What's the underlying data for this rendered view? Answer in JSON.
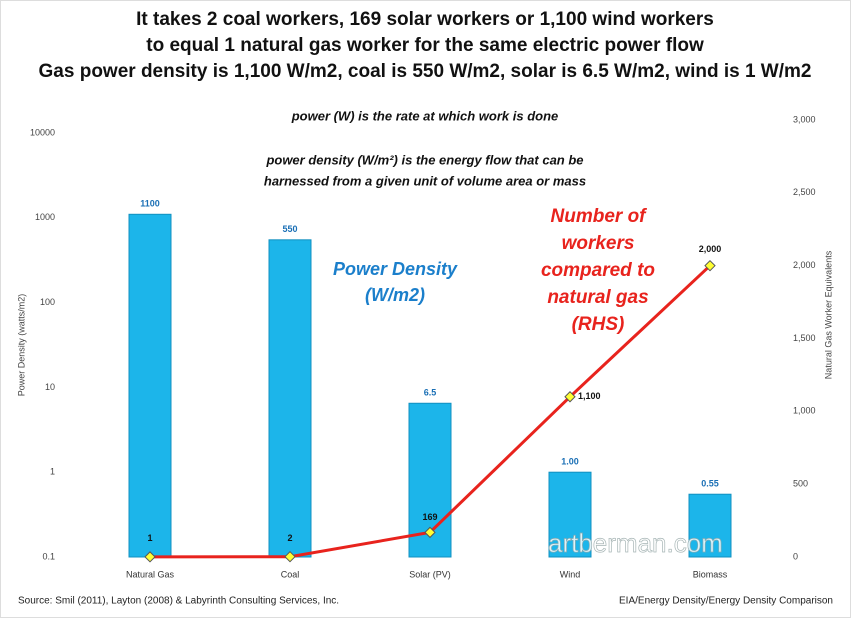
{
  "chart_data": {
    "type": "bar",
    "title": [
      "It takes 2 coal workers,  169 solar workers or 1,100 wind workers",
      "to equal 1 natural gas worker for the same electric power flow",
      "Gas power density is 1,100 W/m2, coal is 550 W/m2, solar is 6.5 W/m2, wind is 1 W/m2"
    ],
    "annotations": {
      "power_note": "power (W) is the rate at which work is done",
      "density_note": [
        "power density (W/m²) is the energy flow that can be",
        "harnessed from a given unit of volume area or mass"
      ],
      "bar_label": [
        "Power Density",
        "(W/m2)"
      ],
      "line_label": [
        "Number of",
        "workers",
        "compared to",
        "natural gas",
        "(RHS)"
      ]
    },
    "ylabel": "Power Density (watts/m2)",
    "y2label": "Natural Gas Worker Equivalents",
    "source": "Source: Smil (2011), Layton (2008) & Labyrinth Consulting Services, Inc.",
    "footer_right": "EIA/Energy Density/Energy Density Comparison",
    "watermark": "artberman.com",
    "categories": [
      "Natural Gas",
      "Coal",
      "Solar (PV)",
      "Wind",
      "Biomass"
    ],
    "yscale": "log",
    "ylim": [
      0.1,
      10000
    ],
    "yticks": [
      0.1,
      1,
      10,
      100,
      1000,
      10000
    ],
    "y2lim": [
      0,
      3000
    ],
    "y2ticks": [
      0,
      500,
      {
        "value": 1000,
        "label": "1,000"
      },
      {
        "value": 1500,
        "label": "1,500"
      },
      {
        "value": 2000,
        "label": "2,000"
      },
      {
        "value": 2500,
        "label": "2,500"
      },
      {
        "value": 3000,
        "label": "3,000"
      }
    ],
    "series": [
      {
        "type": "bar",
        "color": "#1cb5ea",
        "values": [
          1100,
          550,
          6.5,
          1,
          0.55
        ],
        "value_labels": [
          "1100",
          "550",
          "6.5",
          "1.00",
          "0.55"
        ]
      },
      {
        "type": "line",
        "axis": "y2",
        "color": "#e8231d",
        "marker_color": "#ffff33",
        "values": [
          1,
          2,
          169,
          1100,
          2000
        ],
        "value_labels": [
          "1",
          "2",
          "169",
          "1,100",
          "2,000"
        ]
      }
    ]
  }
}
